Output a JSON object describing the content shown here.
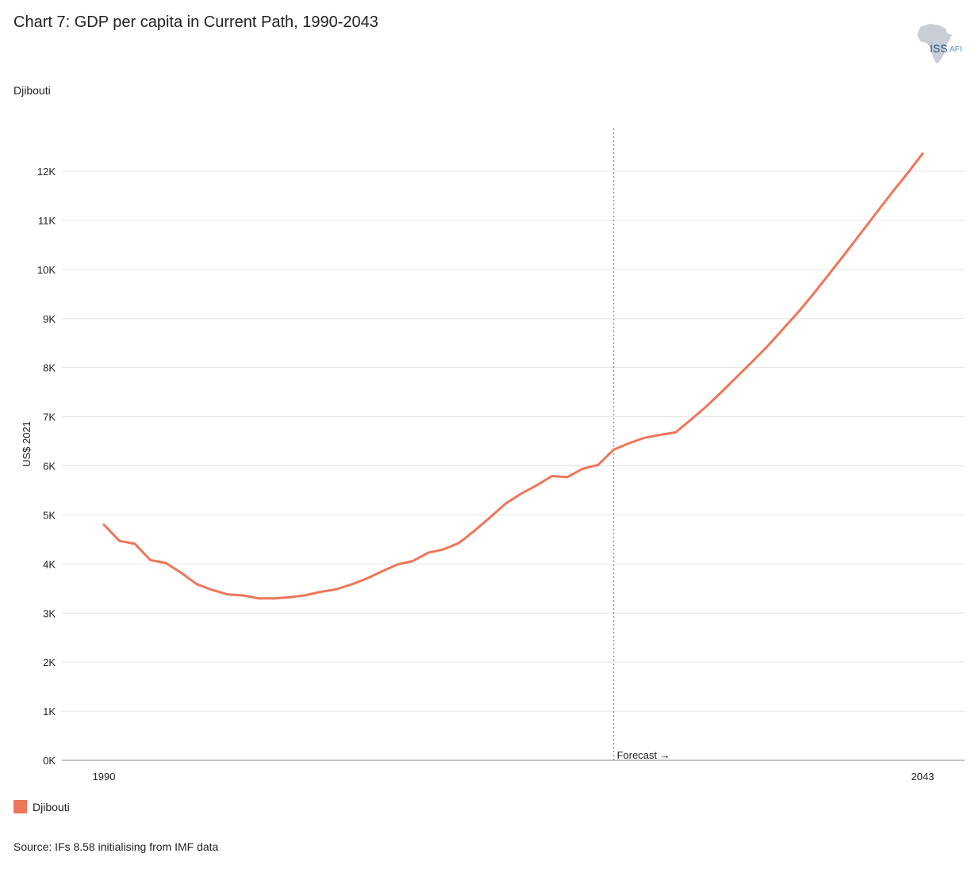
{
  "header": {
    "title": "Chart 7: GDP per capita in Current Path, 1990-2043",
    "subtitle": "Djibouti"
  },
  "logo": {
    "text_main": "ISS",
    "text_sub": "AFI",
    "icon": "africa-map-icon"
  },
  "legend": {
    "label": "Djibouti"
  },
  "source": "Source: IFs 8.58 initialising from IMF data",
  "colors": {
    "series": "#ee7659",
    "grid": "#e4e4e4",
    "axis": "#888888",
    "forecast_line": "#9a9a9a"
  },
  "chart_data": {
    "type": "line",
    "ylabel": "US$ 2021",
    "ylim": [
      0,
      13000
    ],
    "y_ticks": [
      0,
      1000,
      2000,
      3000,
      4000,
      5000,
      6000,
      7000,
      8000,
      9000,
      10000,
      11000,
      12000
    ],
    "y_tick_labels": [
      "0K",
      "1K",
      "2K",
      "3K",
      "4K",
      "5K",
      "6K",
      "7K",
      "8K",
      "9K",
      "10K",
      "11K",
      "12K"
    ],
    "x_tick_labels": [
      "1990",
      "2043"
    ],
    "forecast_label": "Forecast →",
    "forecast_start": 2023,
    "grid": true,
    "series": [
      {
        "name": "Djibouti",
        "x": [
          1990,
          1991,
          1992,
          1993,
          1994,
          1995,
          1996,
          1997,
          1998,
          1999,
          2000,
          2001,
          2002,
          2003,
          2004,
          2005,
          2006,
          2007,
          2008,
          2009,
          2010,
          2011,
          2012,
          2013,
          2014,
          2015,
          2016,
          2017,
          2018,
          2019,
          2020,
          2021,
          2022,
          2023,
          2024,
          2025,
          2026,
          2027,
          2028,
          2029,
          2030,
          2031,
          2032,
          2033,
          2034,
          2035,
          2036,
          2037,
          2038,
          2039,
          2040,
          2041,
          2042,
          2043
        ],
        "y": [
          4800,
          4470,
          4410,
          4080,
          4020,
          3820,
          3590,
          3470,
          3380,
          3360,
          3300,
          3300,
          3320,
          3360,
          3430,
          3480,
          3580,
          3700,
          3850,
          3990,
          4060,
          4230,
          4300,
          4430,
          4680,
          4950,
          5230,
          5430,
          5600,
          5790,
          5770,
          5940,
          6020,
          6330,
          6460,
          6570,
          6630,
          6680,
          6940,
          7210,
          7510,
          7820,
          8130,
          8450,
          8800,
          9150,
          9530,
          9930,
          10330,
          10740,
          11150,
          11560,
          11950,
          12360
        ]
      }
    ]
  }
}
